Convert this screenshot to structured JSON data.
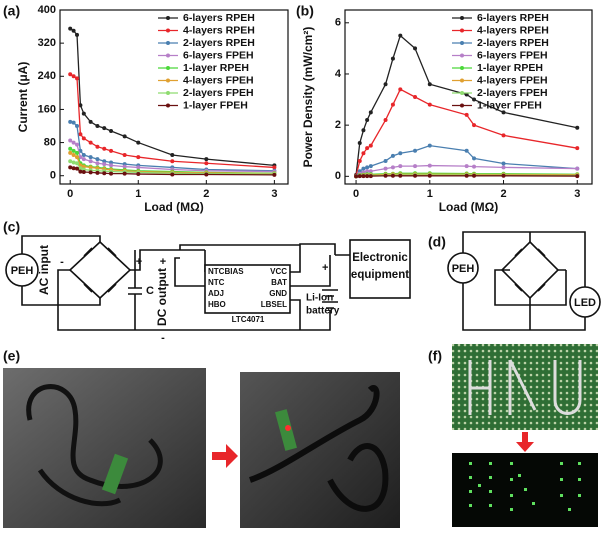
{
  "chart_data": [
    {
      "type": "line",
      "label": "(a)",
      "x_label": "Load (MΩ)",
      "y_label": "Current (μA)",
      "x": [
        0,
        0.05,
        0.1,
        0.15,
        0.2,
        0.3,
        0.4,
        0.5,
        0.6,
        0.8,
        1,
        1.5,
        2,
        3
      ],
      "xlim": [
        -0.15,
        3.2
      ],
      "xticks": [
        0,
        1,
        2,
        3
      ],
      "ylim": [
        -20,
        400
      ],
      "yticks": [
        0,
        80,
        160,
        240,
        320,
        400
      ],
      "grid": false,
      "legend": "upper right",
      "series": [
        {
          "name": "6-layers RPEH",
          "color": "#222222",
          "values": [
            355,
            350,
            340,
            170,
            150,
            130,
            120,
            115,
            108,
            95,
            80,
            50,
            40,
            25
          ]
        },
        {
          "name": "4-layers RPEH",
          "color": "#e8262a",
          "values": [
            245,
            240,
            235,
            100,
            90,
            80,
            70,
            65,
            60,
            50,
            45,
            35,
            30,
            20
          ]
        },
        {
          "name": "2-layers RPEH",
          "color": "#4a7fb0",
          "values": [
            130,
            128,
            120,
            60,
            50,
            45,
            40,
            35,
            32,
            28,
            25,
            20,
            15,
            12
          ]
        },
        {
          "name": "6-layers FPEH",
          "color": "#b67fc8",
          "values": [
            85,
            80,
            75,
            45,
            40,
            35,
            30,
            28,
            25,
            22,
            20,
            15,
            12,
            10
          ]
        },
        {
          "name": "1-layer   RPEH",
          "color": "#4cd83a",
          "values": [
            65,
            60,
            55,
            30,
            25,
            22,
            20,
            18,
            16,
            14,
            12,
            10,
            8,
            6
          ]
        },
        {
          "name": "4-layers FPEH",
          "color": "#e0a030",
          "values": [
            55,
            50,
            45,
            25,
            22,
            20,
            18,
            16,
            14,
            12,
            10,
            8,
            7,
            5
          ]
        },
        {
          "name": "2-layers FPEH",
          "color": "#8fdc70",
          "values": [
            35,
            32,
            30,
            18,
            15,
            13,
            12,
            11,
            10,
            9,
            8,
            6,
            5,
            4
          ]
        },
        {
          "name": "1-layer   FPEH",
          "color": "#6a1010",
          "values": [
            20,
            18,
            17,
            10,
            9,
            8,
            7,
            6,
            5,
            5,
            4,
            3,
            3,
            2
          ]
        }
      ]
    },
    {
      "type": "line",
      "label": "(b)",
      "x_label": "Load (MΩ)",
      "y_label": "Power Density (mW/cm²)",
      "x": [
        0,
        0.05,
        0.1,
        0.15,
        0.2,
        0.4,
        0.5,
        0.6,
        0.8,
        1,
        1.5,
        1.6,
        2,
        3
      ],
      "xlim": [
        -0.15,
        3.2
      ],
      "xticks": [
        0,
        1,
        2,
        3
      ],
      "ylim": [
        -0.3,
        6.5
      ],
      "yticks": [
        0,
        2,
        4,
        6
      ],
      "grid": false,
      "legend": "upper right",
      "series": [
        {
          "name": "6-layers RPEH",
          "color": "#222222",
          "values": [
            0.05,
            1.3,
            1.8,
            2.2,
            2.5,
            3.6,
            4.6,
            5.5,
            5.0,
            3.6,
            3.2,
            3.0,
            2.5,
            1.9
          ]
        },
        {
          "name": "4-layers RPEH",
          "color": "#e8262a",
          "values": [
            0.02,
            0.6,
            0.9,
            1.1,
            1.2,
            2.2,
            2.8,
            3.4,
            3.1,
            2.8,
            2.4,
            2.0,
            1.6,
            1.1
          ]
        },
        {
          "name": "2-layers RPEH",
          "color": "#4a7fb0",
          "values": [
            0.01,
            0.2,
            0.3,
            0.35,
            0.4,
            0.6,
            0.8,
            0.9,
            1.0,
            1.2,
            1.0,
            0.7,
            0.5,
            0.3
          ]
        },
        {
          "name": "6-layers FPEH",
          "color": "#b67fc8",
          "values": [
            0,
            0.1,
            0.15,
            0.2,
            0.2,
            0.3,
            0.35,
            0.4,
            0.4,
            0.42,
            0.4,
            0.38,
            0.35,
            0.3
          ]
        },
        {
          "name": "1-layer   RPEH",
          "color": "#4cd83a",
          "values": [
            0,
            0.05,
            0.06,
            0.08,
            0.08,
            0.1,
            0.1,
            0.12,
            0.12,
            0.12,
            0.11,
            0.1,
            0.1,
            0.08
          ]
        },
        {
          "name": "4-layers FPEH",
          "color": "#e0a030",
          "values": [
            0,
            0.03,
            0.04,
            0.05,
            0.05,
            0.07,
            0.08,
            0.08,
            0.08,
            0.08,
            0.08,
            0.07,
            0.07,
            0.06
          ]
        },
        {
          "name": "2-layers FPEH",
          "color": "#8fdc70",
          "values": [
            0,
            0.02,
            0.02,
            0.03,
            0.03,
            0.04,
            0.04,
            0.05,
            0.05,
            0.05,
            0.05,
            0.04,
            0.04,
            0.03
          ]
        },
        {
          "name": "1-layer   FPEH",
          "color": "#6a1010",
          "values": [
            0,
            0.01,
            0.01,
            0.01,
            0.01,
            0.02,
            0.02,
            0.02,
            0.02,
            0.02,
            0.02,
            0.02,
            0.02,
            0.01
          ]
        }
      ]
    }
  ],
  "circuit_c": {
    "label": "(c)",
    "source": "PEH",
    "input": "AC input",
    "minus_in": "-",
    "plus_in": "+",
    "cap": "C",
    "output": "DC output",
    "plus_out": "+",
    "minus_out": "-",
    "pins": [
      "NTCBIAS",
      "VCC",
      "NTC",
      "BAT",
      "ADJ",
      "GND",
      "HBO",
      "LBSEL"
    ],
    "chip": "LTC4071",
    "battery_plus": "+",
    "battery": [
      "Li-Ion",
      "battery"
    ],
    "load": [
      "Electronic",
      "equipment"
    ]
  },
  "circuit_d": {
    "label": "(d)",
    "source": "PEH",
    "load": "LED"
  },
  "photo_e": {
    "label": "(e)"
  },
  "photo_f": {
    "label": "(f)"
  }
}
